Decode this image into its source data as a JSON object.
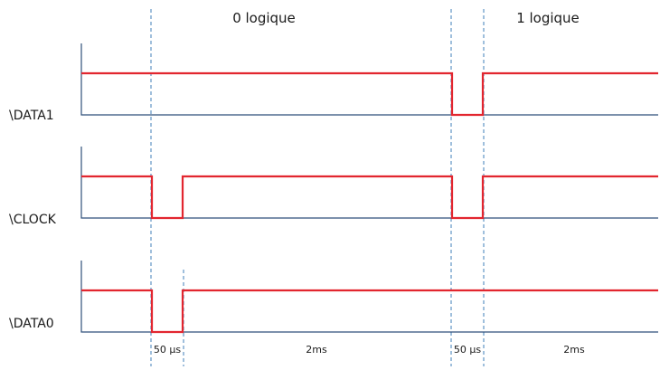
{
  "headers": {
    "zero": "0 logique",
    "one": "1 logique"
  },
  "signals": [
    {
      "id": "data1",
      "label": "\\DATA1"
    },
    {
      "id": "clock",
      "label": "\\CLOCK"
    },
    {
      "id": "data0",
      "label": "\\DATA0"
    }
  ],
  "durations": {
    "pulse1": "50 µs",
    "gap1": "2ms",
    "pulse2": "50 µs",
    "gap2": "2ms"
  },
  "colors": {
    "waveform": "#e2262f",
    "axis": "#2f4f7a",
    "guide": "#3f7fb8"
  }
}
